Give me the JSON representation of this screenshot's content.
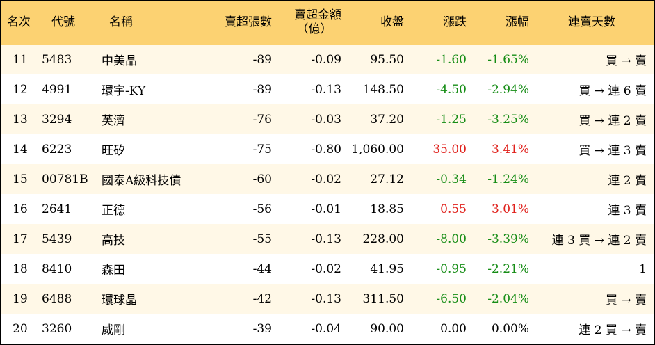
{
  "headers": {
    "rank": "名次",
    "code": "代號",
    "name": "名稱",
    "sell_shares": "賣超張數",
    "sell_amount_line1": "賣超金額",
    "sell_amount_line2": "（億）",
    "close": "收盤",
    "change": "漲跌",
    "change_pct": "漲幅",
    "streak": "連賣天數"
  },
  "rows": [
    {
      "rank": "11",
      "code": "5483",
      "name": "中美晶",
      "sell_shares": "-89",
      "sell_amount": "-0.09",
      "close": "95.50",
      "change": "-1.60",
      "change_pct": "-1.65%",
      "direction": "neg",
      "streak": "買 → 賣"
    },
    {
      "rank": "12",
      "code": "4991",
      "name": "環宇-KY",
      "sell_shares": "-89",
      "sell_amount": "-0.13",
      "close": "148.50",
      "change": "-4.50",
      "change_pct": "-2.94%",
      "direction": "neg",
      "streak": "買 → 連 6 賣"
    },
    {
      "rank": "13",
      "code": "3294",
      "name": "英濟",
      "sell_shares": "-76",
      "sell_amount": "-0.03",
      "close": "37.20",
      "change": "-1.25",
      "change_pct": "-3.25%",
      "direction": "neg",
      "streak": "買 → 連 2 賣"
    },
    {
      "rank": "14",
      "code": "6223",
      "name": "旺矽",
      "sell_shares": "-75",
      "sell_amount": "-0.80",
      "close": "1,060.00",
      "change": "35.00",
      "change_pct": "3.41%",
      "direction": "pos",
      "streak": "買 → 連 3 賣"
    },
    {
      "rank": "15",
      "code": "00781B",
      "name": "國泰A級科技債",
      "sell_shares": "-60",
      "sell_amount": "-0.02",
      "close": "27.12",
      "change": "-0.34",
      "change_pct": "-1.24%",
      "direction": "neg",
      "streak": "連 2 賣"
    },
    {
      "rank": "16",
      "code": "2641",
      "name": "正德",
      "sell_shares": "-56",
      "sell_amount": "-0.01",
      "close": "18.85",
      "change": "0.55",
      "change_pct": "3.01%",
      "direction": "pos",
      "streak": "連 3 賣"
    },
    {
      "rank": "17",
      "code": "5439",
      "name": "高技",
      "sell_shares": "-55",
      "sell_amount": "-0.13",
      "close": "228.00",
      "change": "-8.00",
      "change_pct": "-3.39%",
      "direction": "neg",
      "streak": "連 3 買 → 連 2 賣"
    },
    {
      "rank": "18",
      "code": "8410",
      "name": "森田",
      "sell_shares": "-44",
      "sell_amount": "-0.02",
      "close": "41.95",
      "change": "-0.95",
      "change_pct": "-2.21%",
      "direction": "neg",
      "streak": "1"
    },
    {
      "rank": "19",
      "code": "6488",
      "name": "環球晶",
      "sell_shares": "-42",
      "sell_amount": "-0.13",
      "close": "311.50",
      "change": "-6.50",
      "change_pct": "-2.04%",
      "direction": "neg",
      "streak": "買 → 賣"
    },
    {
      "rank": "20",
      "code": "3260",
      "name": "威剛",
      "sell_shares": "-39",
      "sell_amount": "-0.04",
      "close": "90.00",
      "change": "0.00",
      "change_pct": "0.00%",
      "direction": "zero",
      "streak": "連 2 買 → 賣"
    }
  ],
  "colors": {
    "header_bg": "#fcd272",
    "odd_row_bg": "#fff8e7",
    "even_row_bg": "#ffffff",
    "up": "#e0201b",
    "down": "#168d16"
  }
}
